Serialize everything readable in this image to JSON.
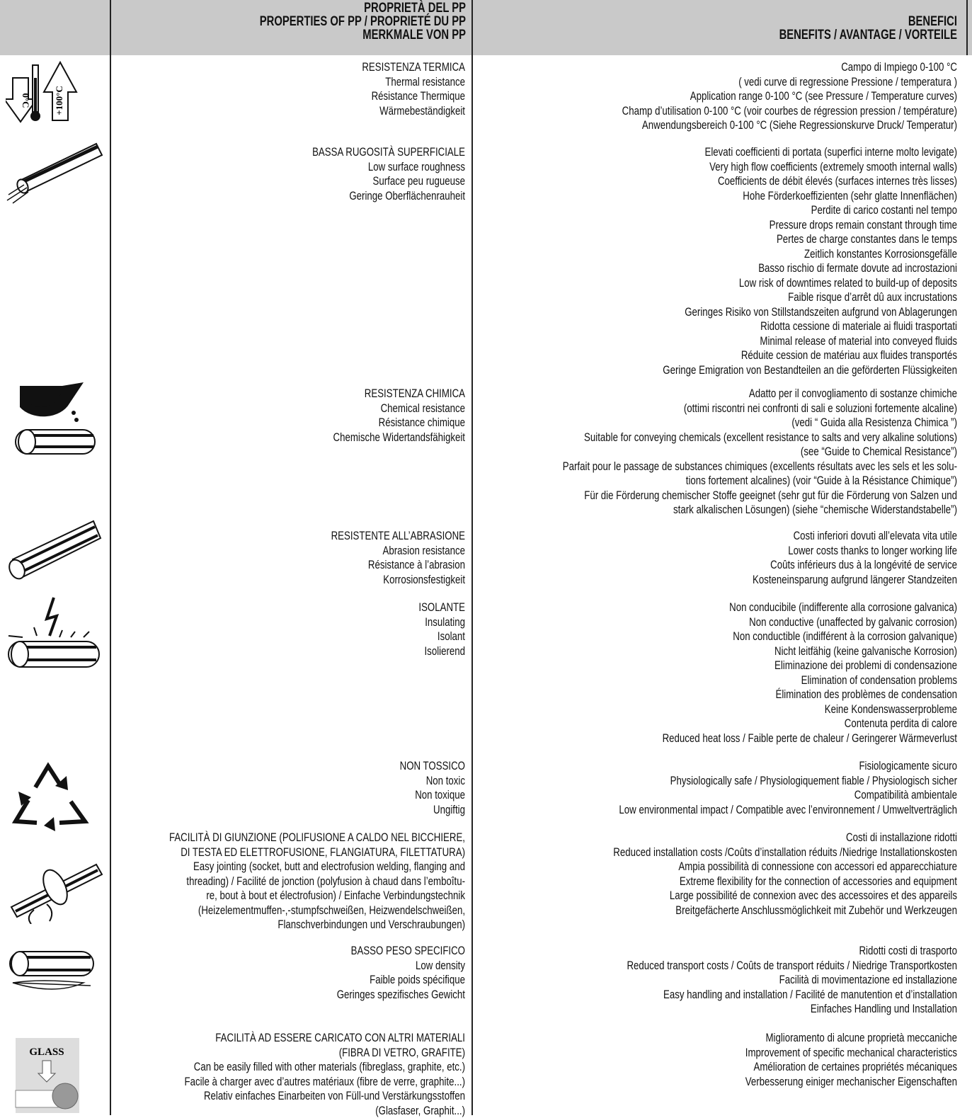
{
  "header": {
    "properties": [
      "PROPRIETÀ DEL PP",
      "PROPERTIES OF PP / PROPRIETÉ DU PP",
      "MERKMALE VON PP"
    ],
    "benefits": [
      "BENEFICI",
      "BENEFITS / AVANTAGE / VORTEILE"
    ]
  },
  "rows": [
    {
      "icon_labels": [
        "0°C",
        "+100°C"
      ],
      "properties": [
        "RESISTENZA TERMICA",
        "Thermal resistance",
        "Résistance Thermique",
        "Wärmebeständigkeit"
      ],
      "benefits": [
        "Campo di Impiego 0-100 °C",
        "( vedi curve di regressione Pressione / temperatura )",
        "Application range 0-100 °C (see Pressure / Temperature curves)",
        "Champ d’utilisation 0-100 °C (voir courbes de régression pression / température)",
        "Anwendungsbereich 0-100 °C (Siehe Regressionskurve Druck/ Temperatur)"
      ]
    },
    {
      "properties": [
        "BASSA RUGOSITÀ SUPERFICIALE",
        "Low surface roughness",
        "Surface peu rugueuse",
        "Geringe Oberflächenrauheit"
      ],
      "benefits": [
        "Elevati coefficienti di portata (superfici interne molto levigate)",
        "Very high flow coefficients (extremely smooth internal walls)",
        "Coefficients de débit élevés (surfaces internes très lisses)",
        "Hohe Förderkoeffizienten (sehr glatte Innenflächen)",
        "Perdite di carico costanti nel tempo",
        "Pressure drops remain constant through time",
        "Pertes de charge constantes dans le temps",
        "Zeitlich konstantes Korrosionsgefälle",
        "Basso rischio di fermate dovute ad incrostazioni",
        "Low risk of downtimes related to build-up of deposits",
        "Faible risque d’arrêt dû aux incrustations",
        "Geringes Risiko von Stillstandszeiten aufgrund von Ablagerungen",
        "Ridotta cessione di materiale ai fluidi trasportati",
        "Minimal release of material into conveyed fluids",
        "Réduite cession de matériau aux fluides transportés",
        "Geringe Emigration von Bestandteilen an die geförderten Flüssigkeiten"
      ]
    },
    {
      "properties": [
        "RESISTENZA CHIMICA",
        "Chemical resistance",
        "Résistance chimique",
        "Chemische Widertandsfähigkeit"
      ],
      "benefits": [
        "Adatto per il convogliamento di sostanze chimiche",
        "(ottimi riscontri nei confronti di sali e soluzioni fortemente alcaline)",
        "(vedi “ Guida alla Resistenza Chimica ”)",
        "Suitable for conveying chemicals (excellent resistance to salts and very alkaline solutions)",
        "(see “Guide to Chemical Resistance”)",
        "Parfait pour le passage de substances chimiques (excellents résultats avec les sels et les solu-",
        "tions fortement alcalines) (voir “Guide à la Résistance Chimique”)",
        "Für die Förderung chemischer Stoffe geeignet (sehr gut für die Förderung von Salzen und",
        "stark alkalischen Lösungen) (siehe  “chemische Widerstandstabelle”)"
      ]
    },
    {
      "properties": [
        "RESISTENTE ALL’ABRASIONE",
        "Abrasion resistance",
        "Résistance à l’abrasion",
        "Korrosionsfestigkeit"
      ],
      "benefits": [
        "Costi inferiori dovuti all’elevata vita utile",
        "Lower costs thanks to longer working life",
        "Coûts inférieurs dus à la longévité de service",
        "Kosteneinsparung aufgrund längerer Standzeiten"
      ]
    },
    {
      "properties": [
        "ISOLANTE",
        "Insulating",
        "Isolant",
        "Isolierend"
      ],
      "benefits": [
        "Non conducibile (indifferente alla corrosione galvanica)",
        "Non conductive (unaffected by galvanic corrosion)",
        "Non conductible (indifférent à la corrosion galvanique)",
        "Nicht leitfähig (keine galvanische Korrosion)",
        "Eliminazione dei problemi di condensazione",
        "Elimination of condensation problems",
        "Élimination des problèmes de condensation",
        "Keine Kondenswasserprobleme",
        "Contenuta perdita di calore",
        "Reduced heat loss / Faible perte de chaleur / Geringerer Wärmeverlust"
      ]
    },
    {
      "properties": [
        "NON TOSSICO",
        "Non toxic",
        "Non toxique",
        "Ungiftig"
      ],
      "benefits": [
        "Fisiologicamente sicuro",
        "Physiologically safe / Physiologiquement fiable / Physiologisch sicher",
        "Compatibilità ambientale",
        "Low environmental impact / Compatible avec l’environnement / Umweltverträglich"
      ]
    },
    {
      "properties": [
        "FACILITÀ DI GIUNZIONE (POLIFUSIONE A CALDO NEL BICCHIERE,",
        "DI TESTA ED ELETTROFUSIONE, FLANGIATURA, FILETTATURA)",
        "Easy jointing (socket, butt and electrofusion welding, flanging and",
        "threading) / Facilité de jonction (polyfusion à chaud dans l’emboîtu-",
        "re, bout à bout et électrofusion) / Einfache Verbindungstechnik",
        "(Heizelementmuffen-,-stumpfschweißen, Heizwendelschweißen,",
        "Flanschverbindungen und Verschraubungen)"
      ],
      "benefits": [
        "Costi di installazione ridotti",
        "Reduced installation costs /Coûts d’installation réduits /Niedrige Installationskosten",
        "Ampia possibilità di connessione con accessori ed apparecchiature",
        "Extreme flexibility for the connection of accessories and equipment",
        "Large possibilité de connexion avec des accessoires et des appareils",
        "Breitgefächerte Anschlussmöglichkeit mit Zubehör und Werkzeugen"
      ]
    },
    {
      "properties": [
        "BASSO PESO SPECIFICO",
        "Low density",
        "Faible poids spécifique",
        "Geringes spezifisches Gewicht"
      ],
      "benefits": [
        "Ridotti costi di trasporto",
        "Reduced transport costs / Coûts de transport réduits / Niedrige Transportkosten",
        "Facilità di movimentazione ed installazione",
        "Easy handling and installation / Facilité de manutention et d’installation",
        "Einfaches Handling und Installation"
      ]
    },
    {
      "icon_labels": [
        "GLASS"
      ],
      "properties": [
        "FACILITÀ AD ESSERE CARICATO CON ALTRI MATERIALI",
        "(FIBRA DI VETRO, GRAFITE)",
        "Can be easily filled with other materials (fibreglass, graphite, etc.)",
        "Facile à charger avec d’autres matériaux (fibre de verre, graphite...)",
        "Relativ einfaches Einarbeiten von Füll-und Verstärkungsstoffen",
        "(Glasfaser, Graphit...)"
      ],
      "benefits": [
        "Miglioramento di alcune proprietà meccaniche",
        "Improvement of specific mechanical characteristics",
        "Amélioration de certaines propriétés mécaniques",
        "Verbesserung einiger mechanischer Eigenschaften"
      ]
    }
  ]
}
